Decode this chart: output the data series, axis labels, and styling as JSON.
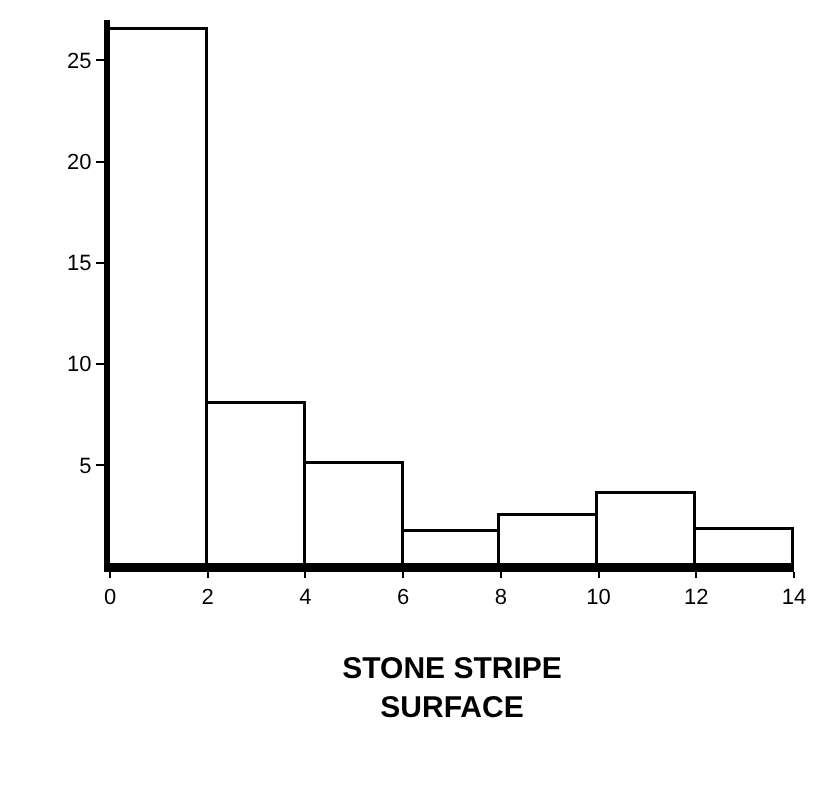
{
  "chart_data": {
    "type": "histogram",
    "xlabel": "STONE STRIPE\nSURFACE",
    "bins": [
      0,
      2,
      4,
      6,
      8,
      10,
      12,
      14
    ],
    "values": [
      26.5,
      8,
      5,
      1.7,
      2.5,
      3.6,
      1.8
    ],
    "color": "#ffffff",
    "xlim": [
      0,
      14
    ],
    "xticks": [
      0,
      2,
      4,
      6,
      8,
      10,
      12,
      14
    ],
    "ylim": [
      0,
      27
    ],
    "yticks": [
      5,
      10,
      15,
      20,
      25
    ]
  }
}
